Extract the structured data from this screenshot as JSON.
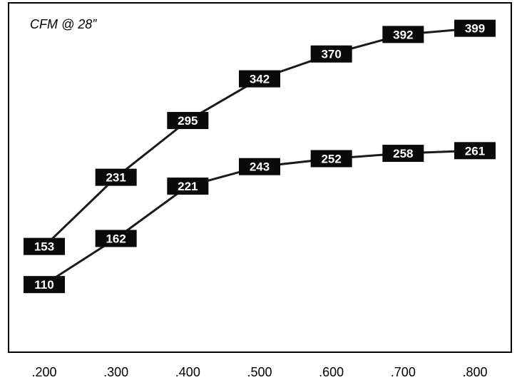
{
  "chart_data": {
    "type": "line",
    "title": "CFM @ 28”",
    "xlabel": "",
    "ylabel": "",
    "x": [
      ".200",
      ".300",
      ".400",
      ".500",
      ".600",
      ".700",
      ".800"
    ],
    "x_values": [
      0.2,
      0.3,
      0.4,
      0.5,
      0.6,
      0.7,
      0.8
    ],
    "series": [
      {
        "values": [
          153,
          231,
          295,
          342,
          370,
          392,
          399
        ]
      },
      {
        "values": [
          110,
          162,
          221,
          243,
          252,
          258,
          261
        ]
      }
    ],
    "ylim": [
      0,
      500
    ],
    "grid": false,
    "legend": "none",
    "data_labels": true
  },
  "colors": {
    "line": "#1a1a1a",
    "label_bg": "#0a0a0a",
    "label_text": "#ffffff",
    "frame": "#000000"
  }
}
